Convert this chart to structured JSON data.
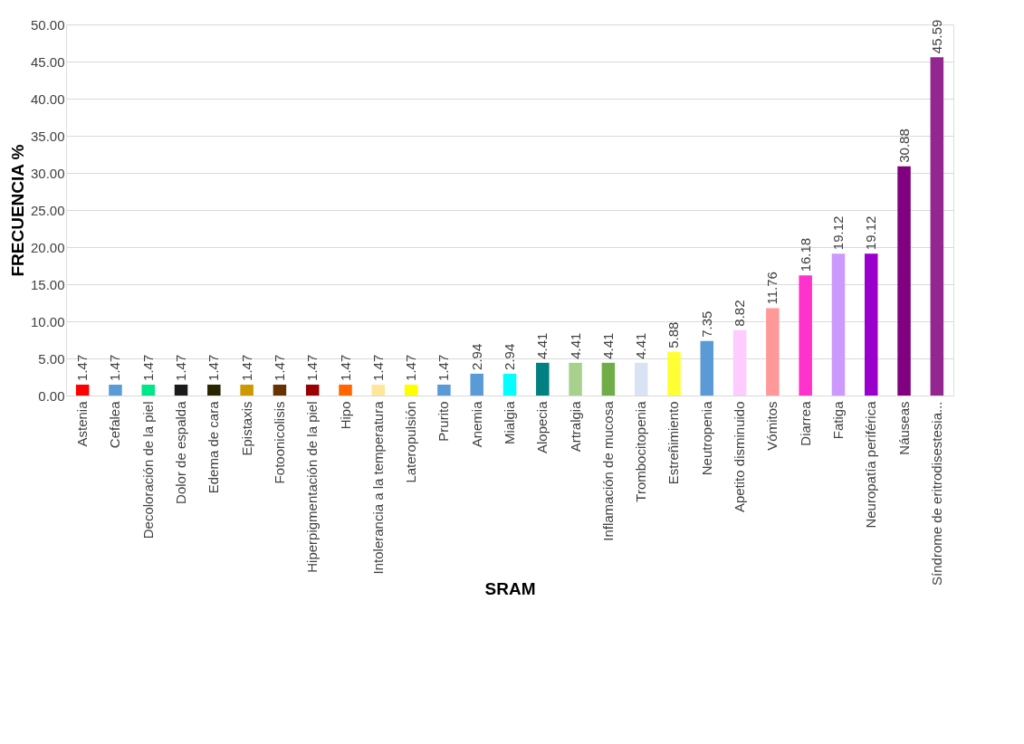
{
  "chart_data": {
    "type": "bar",
    "xlabel": "SRAM",
    "ylabel": "FRECUENCIA %",
    "categories": [
      "Astenia",
      "Cefalea",
      "Decoloración de la piel",
      "Dolor de espalda",
      "Edema de cara",
      "Epistaxis",
      "Fotoonicolisis",
      "Hiperpigmentación de la piel",
      "Hipo",
      "Intolerancia a la temperatura",
      "Lateropulsión",
      "Prurito",
      "Anemia",
      "Mialgia",
      "Alopecia",
      "Artralgia",
      "Inflamación de mucosa",
      "Trombocitopenia",
      "Estreñimiento",
      "Neutropenia",
      "Apetito disminuido",
      "Vómitos",
      "Diarrea",
      "Fatiga",
      "Neuropatía periférica",
      "Náuseas",
      "Síndrome de eritrodisestesia..."
    ],
    "values": [
      1.47,
      1.47,
      1.47,
      1.47,
      1.47,
      1.47,
      1.47,
      1.47,
      1.47,
      1.47,
      1.47,
      1.47,
      2.94,
      2.94,
      4.41,
      4.41,
      4.41,
      4.41,
      5.88,
      7.35,
      8.82,
      11.76,
      16.18,
      19.12,
      19.12,
      30.88,
      45.59
    ],
    "colors": [
      "#ff0000",
      "#5b9bd5",
      "#00e68a",
      "#1a1a1a",
      "#262600",
      "#cc9900",
      "#663300",
      "#990000",
      "#ff6600",
      "#ffe699",
      "#ffff00",
      "#5b9bd5",
      "#5b9bd5",
      "#00ffff",
      "#008080",
      "#a9d18e",
      "#70ad47",
      "#dae3f3",
      "#ffff33",
      "#5b9bd5",
      "#ffccff",
      "#ff9999",
      "#ff33cc",
      "#cc99ff",
      "#9900cc",
      "#800080",
      "#93278f"
    ],
    "ylim": [
      0,
      50
    ],
    "yticks": [
      {
        "value": 0,
        "label": "0.00"
      },
      {
        "value": 5,
        "label": "5.00"
      },
      {
        "value": 10,
        "label": "10.00"
      },
      {
        "value": 15,
        "label": "15.00"
      },
      {
        "value": 20,
        "label": "20.00"
      },
      {
        "value": 25,
        "label": "25.00"
      },
      {
        "value": 30,
        "label": "30.00"
      },
      {
        "value": 35,
        "label": "35.00"
      },
      {
        "value": 40,
        "label": "40.00"
      },
      {
        "value": 45,
        "label": "45.00"
      },
      {
        "value": 50,
        "label": "50.00"
      }
    ],
    "grid": "y",
    "data_labels": true
  }
}
